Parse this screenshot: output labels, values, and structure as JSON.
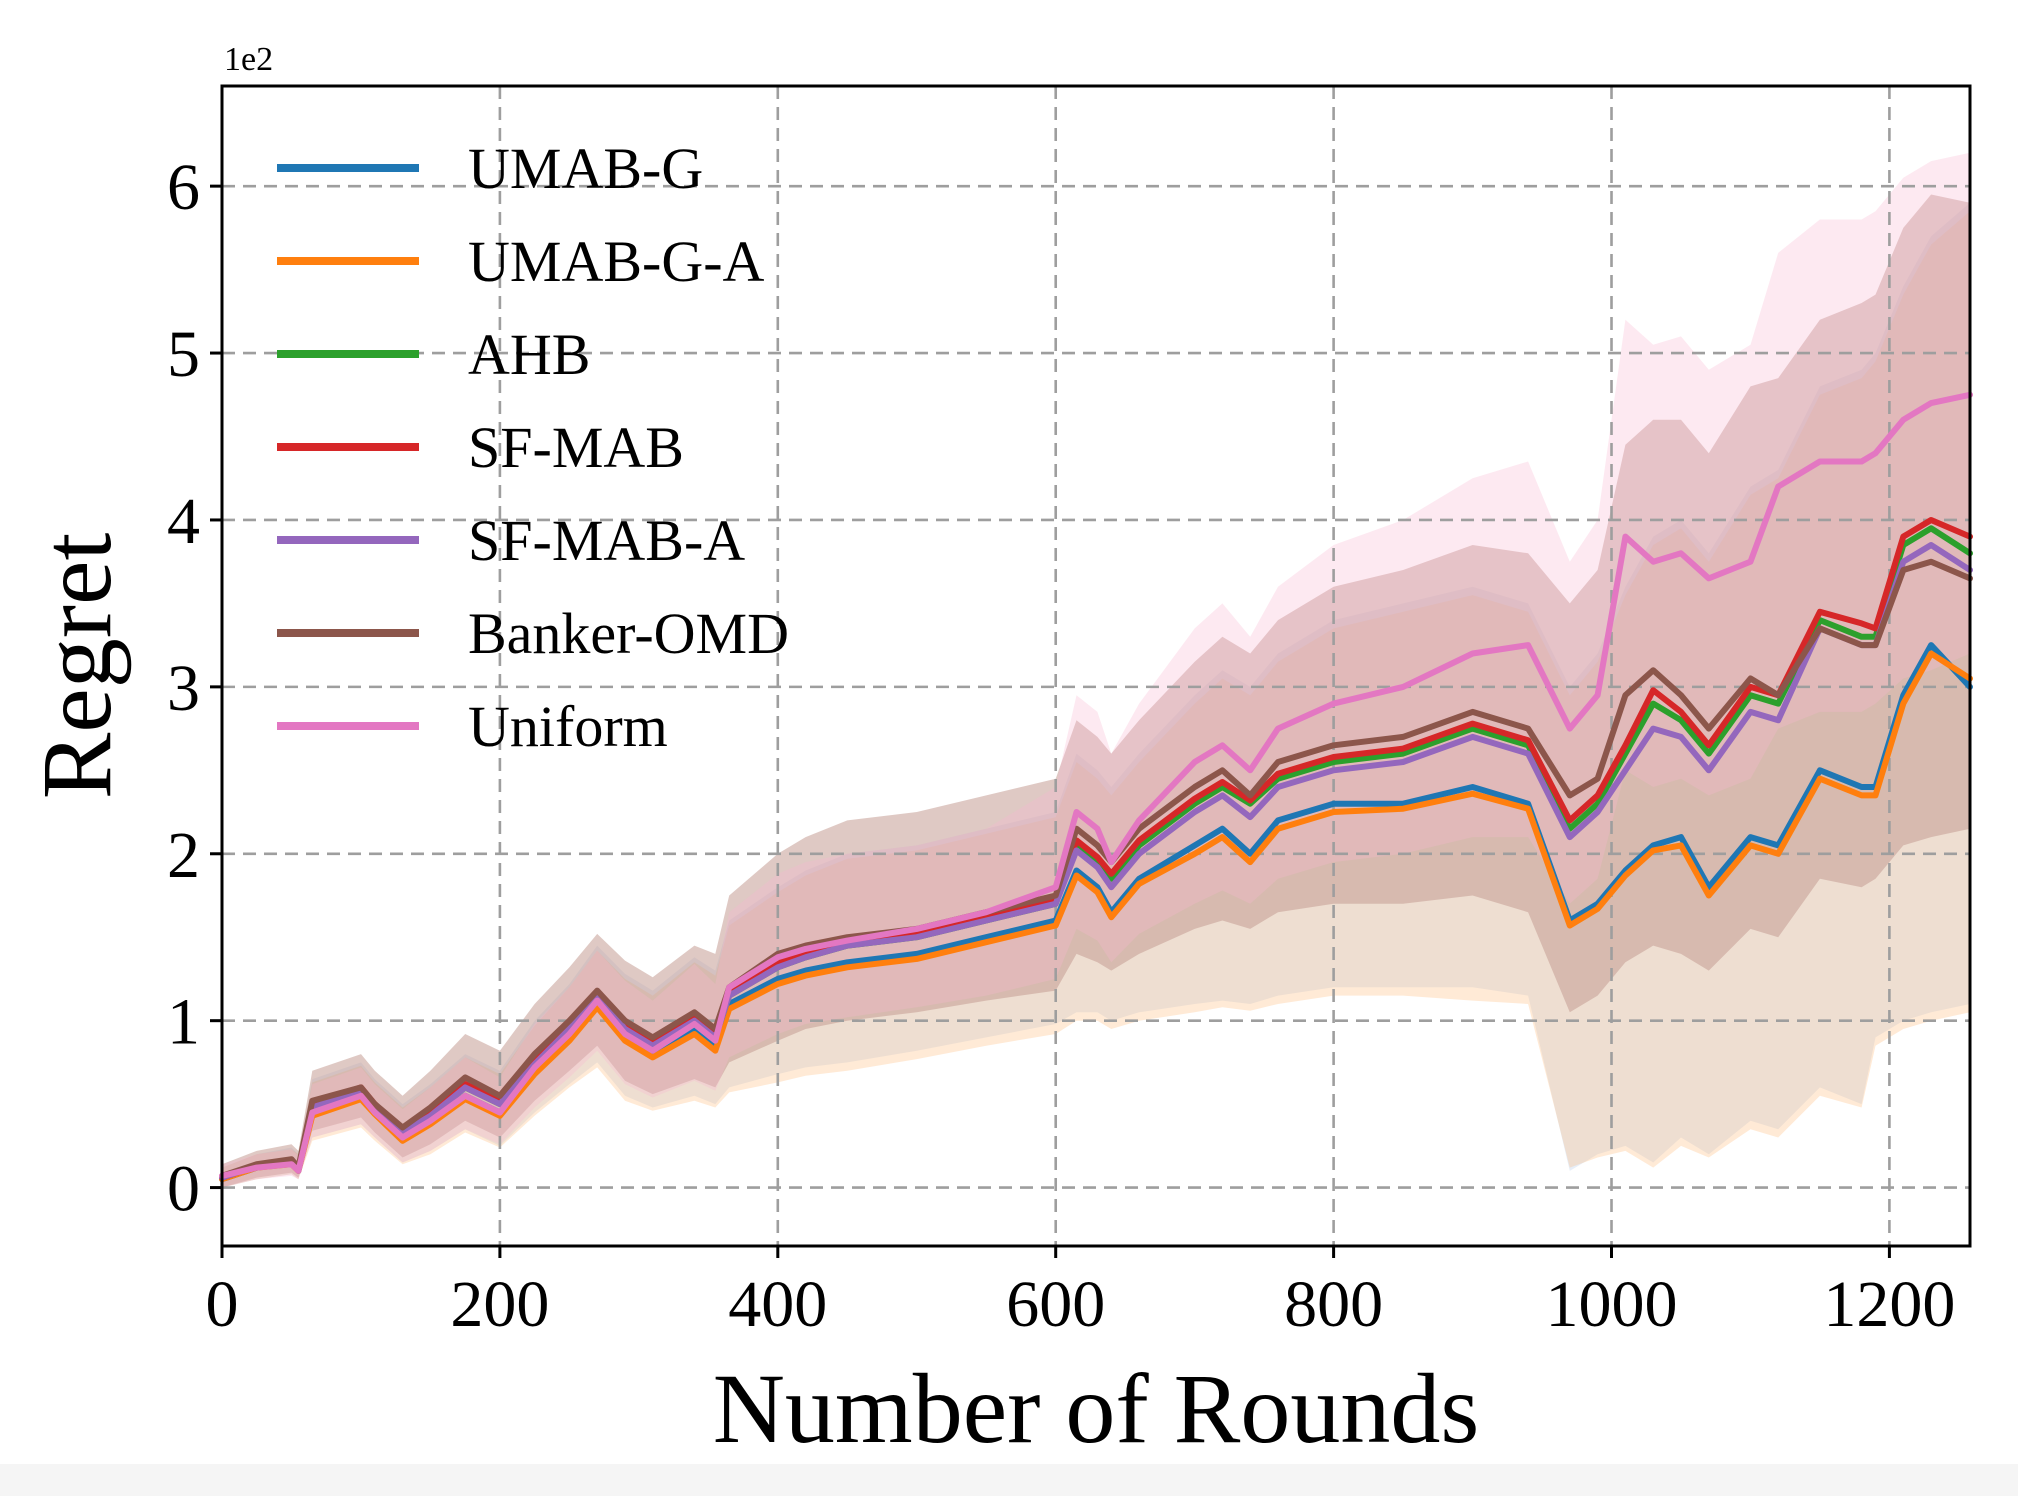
{
  "chart_data": {
    "type": "line",
    "title": "",
    "xlabel": "Number of Rounds",
    "ylabel": "Regret",
    "y_scale_label": "1e2",
    "xlim": [
      0,
      1258
    ],
    "ylim": [
      -0.35,
      6.6
    ],
    "x_ticks": [
      0,
      200,
      400,
      600,
      800,
      1000,
      1200
    ],
    "y_ticks": [
      0,
      1,
      2,
      3,
      4,
      5,
      6
    ],
    "grid": true,
    "legend_position": "top-left",
    "x": [
      0,
      25,
      50,
      55,
      65,
      100,
      110,
      130,
      150,
      175,
      200,
      225,
      250,
      270,
      290,
      310,
      340,
      355,
      365,
      400,
      420,
      450,
      500,
      550,
      600,
      615,
      630,
      640,
      660,
      700,
      720,
      740,
      760,
      800,
      850,
      900,
      940,
      970,
      990,
      1010,
      1030,
      1050,
      1070,
      1100,
      1120,
      1150,
      1180,
      1190,
      1210,
      1230,
      1258
    ],
    "series": [
      {
        "name": "UMAB-G",
        "color": "#1f77b4",
        "values": [
          0.05,
          0.12,
          0.15,
          0.1,
          0.45,
          0.55,
          0.45,
          0.3,
          0.4,
          0.55,
          0.45,
          0.7,
          0.9,
          1.1,
          0.9,
          0.8,
          0.95,
          0.85,
          1.1,
          1.25,
          1.3,
          1.35,
          1.4,
          1.5,
          1.6,
          1.9,
          1.8,
          1.65,
          1.85,
          2.05,
          2.15,
          2.0,
          2.2,
          2.3,
          2.3,
          2.4,
          2.3,
          1.6,
          1.7,
          1.9,
          2.05,
          2.1,
          1.8,
          2.1,
          2.05,
          2.5,
          2.4,
          2.4,
          2.95,
          3.25,
          3.0
        ]
      },
      {
        "name": "UMAB-G-A",
        "color": "#ff7f0e",
        "values": [
          0.05,
          0.12,
          0.14,
          0.1,
          0.43,
          0.53,
          0.44,
          0.28,
          0.38,
          0.53,
          0.43,
          0.68,
          0.88,
          1.08,
          0.88,
          0.78,
          0.92,
          0.82,
          1.07,
          1.22,
          1.27,
          1.32,
          1.37,
          1.47,
          1.57,
          1.87,
          1.77,
          1.62,
          1.82,
          2.0,
          2.1,
          1.95,
          2.15,
          2.25,
          2.27,
          2.36,
          2.27,
          1.57,
          1.67,
          1.87,
          2.02,
          2.05,
          1.75,
          2.05,
          2.0,
          2.45,
          2.35,
          2.35,
          2.9,
          3.2,
          3.05
        ]
      },
      {
        "name": "AHB",
        "color": "#2ca02c",
        "values": [
          0.06,
          0.13,
          0.16,
          0.11,
          0.48,
          0.58,
          0.48,
          0.33,
          0.43,
          0.6,
          0.5,
          0.74,
          0.95,
          1.15,
          0.95,
          0.85,
          1.0,
          0.9,
          1.15,
          1.32,
          1.38,
          1.45,
          1.5,
          1.6,
          1.7,
          2.05,
          1.95,
          1.85,
          2.05,
          2.3,
          2.4,
          2.3,
          2.45,
          2.55,
          2.6,
          2.75,
          2.65,
          2.15,
          2.3,
          2.6,
          2.9,
          2.8,
          2.6,
          2.95,
          2.9,
          3.4,
          3.3,
          3.3,
          3.85,
          3.95,
          3.8
        ]
      },
      {
        "name": "SF-MAB",
        "color": "#d62728",
        "values": [
          0.06,
          0.13,
          0.16,
          0.11,
          0.5,
          0.6,
          0.5,
          0.34,
          0.45,
          0.62,
          0.52,
          0.76,
          0.97,
          1.17,
          0.97,
          0.87,
          1.02,
          0.92,
          1.18,
          1.35,
          1.4,
          1.47,
          1.52,
          1.62,
          1.72,
          2.08,
          1.98,
          1.88,
          2.08,
          2.33,
          2.43,
          2.32,
          2.48,
          2.58,
          2.63,
          2.78,
          2.68,
          2.2,
          2.35,
          2.65,
          2.98,
          2.85,
          2.65,
          3.0,
          2.95,
          3.45,
          3.38,
          3.35,
          3.9,
          4.0,
          3.9
        ]
      },
      {
        "name": "SF-MAB-A",
        "color": "#9467bd",
        "values": [
          0.06,
          0.13,
          0.16,
          0.11,
          0.48,
          0.58,
          0.48,
          0.33,
          0.43,
          0.6,
          0.5,
          0.74,
          0.95,
          1.15,
          0.95,
          0.85,
          1.0,
          0.9,
          1.15,
          1.32,
          1.38,
          1.45,
          1.5,
          1.6,
          1.7,
          2.02,
          1.92,
          1.8,
          2.0,
          2.25,
          2.35,
          2.22,
          2.4,
          2.5,
          2.55,
          2.7,
          2.6,
          2.1,
          2.25,
          2.5,
          2.75,
          2.7,
          2.5,
          2.85,
          2.8,
          3.35,
          3.25,
          3.25,
          3.75,
          3.85,
          3.7
        ]
      },
      {
        "name": "Banker-OMD",
        "color": "#8c564b",
        "values": [
          0.07,
          0.14,
          0.17,
          0.12,
          0.52,
          0.6,
          0.5,
          0.36,
          0.48,
          0.66,
          0.55,
          0.8,
          1.0,
          1.18,
          1.0,
          0.9,
          1.05,
          0.95,
          1.2,
          1.4,
          1.45,
          1.5,
          1.55,
          1.65,
          1.75,
          2.15,
          2.05,
          1.95,
          2.15,
          2.4,
          2.5,
          2.35,
          2.55,
          2.65,
          2.7,
          2.85,
          2.75,
          2.35,
          2.45,
          2.95,
          3.1,
          2.95,
          2.75,
          3.05,
          2.95,
          3.35,
          3.25,
          3.25,
          3.7,
          3.75,
          3.65
        ]
      },
      {
        "name": "Uniform",
        "color": "#e377c2",
        "values": [
          0.07,
          0.12,
          0.14,
          0.1,
          0.45,
          0.55,
          0.45,
          0.3,
          0.4,
          0.55,
          0.45,
          0.72,
          0.92,
          1.12,
          0.92,
          0.82,
          0.98,
          0.88,
          1.2,
          1.38,
          1.43,
          1.48,
          1.55,
          1.65,
          1.8,
          2.25,
          2.15,
          1.95,
          2.2,
          2.55,
          2.65,
          2.5,
          2.75,
          2.9,
          3.0,
          3.2,
          3.25,
          2.75,
          2.95,
          3.9,
          3.75,
          3.8,
          3.65,
          3.75,
          4.2,
          4.35,
          4.35,
          4.4,
          4.6,
          4.7,
          4.75
        ]
      }
    ],
    "bands": [
      {
        "name": "UMAB-G",
        "color": "#aec7e8",
        "lower": [
          0.0,
          0.05,
          0.08,
          0.05,
          0.3,
          0.38,
          0.3,
          0.15,
          0.22,
          0.35,
          0.25,
          0.45,
          0.62,
          0.75,
          0.55,
          0.48,
          0.55,
          0.5,
          0.6,
          0.68,
          0.72,
          0.75,
          0.82,
          0.9,
          0.98,
          1.05,
          1.05,
          1.0,
          1.05,
          1.1,
          1.12,
          1.1,
          1.15,
          1.2,
          1.2,
          1.2,
          1.15,
          0.1,
          0.2,
          0.25,
          0.15,
          0.3,
          0.2,
          0.4,
          0.35,
          0.6,
          0.5,
          0.9,
          1.0,
          1.05,
          1.1
        ],
        "upper": [
          0.12,
          0.2,
          0.24,
          0.2,
          0.65,
          0.75,
          0.65,
          0.5,
          0.62,
          0.8,
          0.7,
          1.0,
          1.22,
          1.45,
          1.28,
          1.18,
          1.38,
          1.3,
          1.6,
          1.8,
          1.9,
          2.0,
          2.05,
          2.15,
          2.25,
          2.6,
          2.5,
          2.4,
          2.6,
          2.95,
          3.1,
          3.0,
          3.2,
          3.4,
          3.5,
          3.6,
          3.5,
          3.0,
          3.2,
          3.6,
          3.9,
          4.0,
          3.8,
          4.2,
          4.3,
          4.8,
          4.9,
          5.0,
          5.4,
          5.7,
          5.9
        ]
      },
      {
        "name": "UMAB-G-A",
        "color": "#ffbb78",
        "lower": [
          0.0,
          0.05,
          0.08,
          0.05,
          0.28,
          0.36,
          0.28,
          0.14,
          0.2,
          0.33,
          0.24,
          0.43,
          0.6,
          0.72,
          0.52,
          0.46,
          0.52,
          0.48,
          0.57,
          0.63,
          0.67,
          0.7,
          0.77,
          0.85,
          0.92,
          1.0,
          1.0,
          0.95,
          1.0,
          1.05,
          1.08,
          1.06,
          1.1,
          1.15,
          1.15,
          1.12,
          1.1,
          0.12,
          0.18,
          0.22,
          0.12,
          0.25,
          0.18,
          0.35,
          0.3,
          0.55,
          0.48,
          0.85,
          0.95,
          1.0,
          1.05
        ],
        "upper": [
          0.12,
          0.2,
          0.23,
          0.2,
          0.63,
          0.73,
          0.63,
          0.48,
          0.6,
          0.78,
          0.68,
          0.97,
          1.2,
          1.42,
          1.25,
          1.15,
          1.35,
          1.27,
          1.57,
          1.77,
          1.87,
          1.97,
          2.02,
          2.12,
          2.22,
          2.55,
          2.45,
          2.35,
          2.55,
          2.9,
          3.05,
          2.95,
          3.15,
          3.35,
          3.45,
          3.55,
          3.45,
          2.95,
          3.15,
          3.55,
          3.85,
          3.95,
          3.75,
          4.15,
          4.25,
          4.75,
          4.85,
          4.95,
          5.35,
          5.65,
          5.85
        ]
      },
      {
        "name": "Banker-OMD",
        "color": "#c49c94",
        "lower": [
          0.0,
          0.06,
          0.09,
          0.06,
          0.34,
          0.42,
          0.33,
          0.18,
          0.26,
          0.4,
          0.3,
          0.52,
          0.7,
          0.85,
          0.64,
          0.56,
          0.65,
          0.6,
          0.75,
          0.88,
          0.95,
          1.0,
          1.05,
          1.12,
          1.18,
          1.4,
          1.35,
          1.3,
          1.4,
          1.55,
          1.6,
          1.55,
          1.65,
          1.7,
          1.7,
          1.75,
          1.65,
          1.05,
          1.15,
          1.35,
          1.45,
          1.4,
          1.3,
          1.55,
          1.5,
          1.85,
          1.8,
          1.85,
          2.05,
          2.1,
          2.15
        ],
        "upper": [
          0.14,
          0.22,
          0.26,
          0.22,
          0.7,
          0.8,
          0.7,
          0.55,
          0.7,
          0.92,
          0.82,
          1.1,
          1.32,
          1.52,
          1.36,
          1.26,
          1.45,
          1.4,
          1.75,
          2.0,
          2.1,
          2.2,
          2.25,
          2.35,
          2.45,
          2.8,
          2.7,
          2.6,
          2.8,
          3.15,
          3.3,
          3.2,
          3.4,
          3.6,
          3.7,
          3.85,
          3.8,
          3.5,
          3.7,
          4.45,
          4.6,
          4.6,
          4.4,
          4.8,
          4.85,
          5.2,
          5.3,
          5.35,
          5.75,
          5.95,
          5.9
        ]
      },
      {
        "name": "Uniform",
        "color": "#f7b6d2",
        "lower": [
          0.0,
          0.05,
          0.07,
          0.05,
          0.3,
          0.38,
          0.3,
          0.15,
          0.22,
          0.35,
          0.26,
          0.48,
          0.66,
          0.82,
          0.62,
          0.54,
          0.64,
          0.58,
          0.78,
          0.92,
          0.98,
          1.02,
          1.08,
          1.15,
          1.25,
          1.55,
          1.48,
          1.35,
          1.52,
          1.7,
          1.78,
          1.7,
          1.85,
          1.95,
          2.0,
          2.1,
          2.1,
          1.7,
          1.85,
          2.5,
          2.4,
          2.45,
          2.35,
          2.45,
          2.75,
          2.85,
          2.85,
          2.9,
          3.05,
          3.1,
          3.2
        ],
        "upper": [
          0.14,
          0.2,
          0.23,
          0.19,
          0.62,
          0.72,
          0.62,
          0.47,
          0.6,
          0.78,
          0.66,
          0.98,
          1.2,
          1.42,
          1.24,
          1.12,
          1.34,
          1.22,
          1.65,
          1.88,
          1.95,
          2.0,
          2.05,
          2.15,
          2.4,
          2.95,
          2.85,
          2.6,
          2.9,
          3.35,
          3.5,
          3.3,
          3.6,
          3.85,
          4.0,
          4.25,
          4.35,
          3.75,
          4.0,
          5.2,
          5.05,
          5.1,
          4.9,
          5.05,
          5.6,
          5.8,
          5.8,
          5.85,
          6.05,
          6.15,
          6.2
        ]
      }
    ]
  }
}
